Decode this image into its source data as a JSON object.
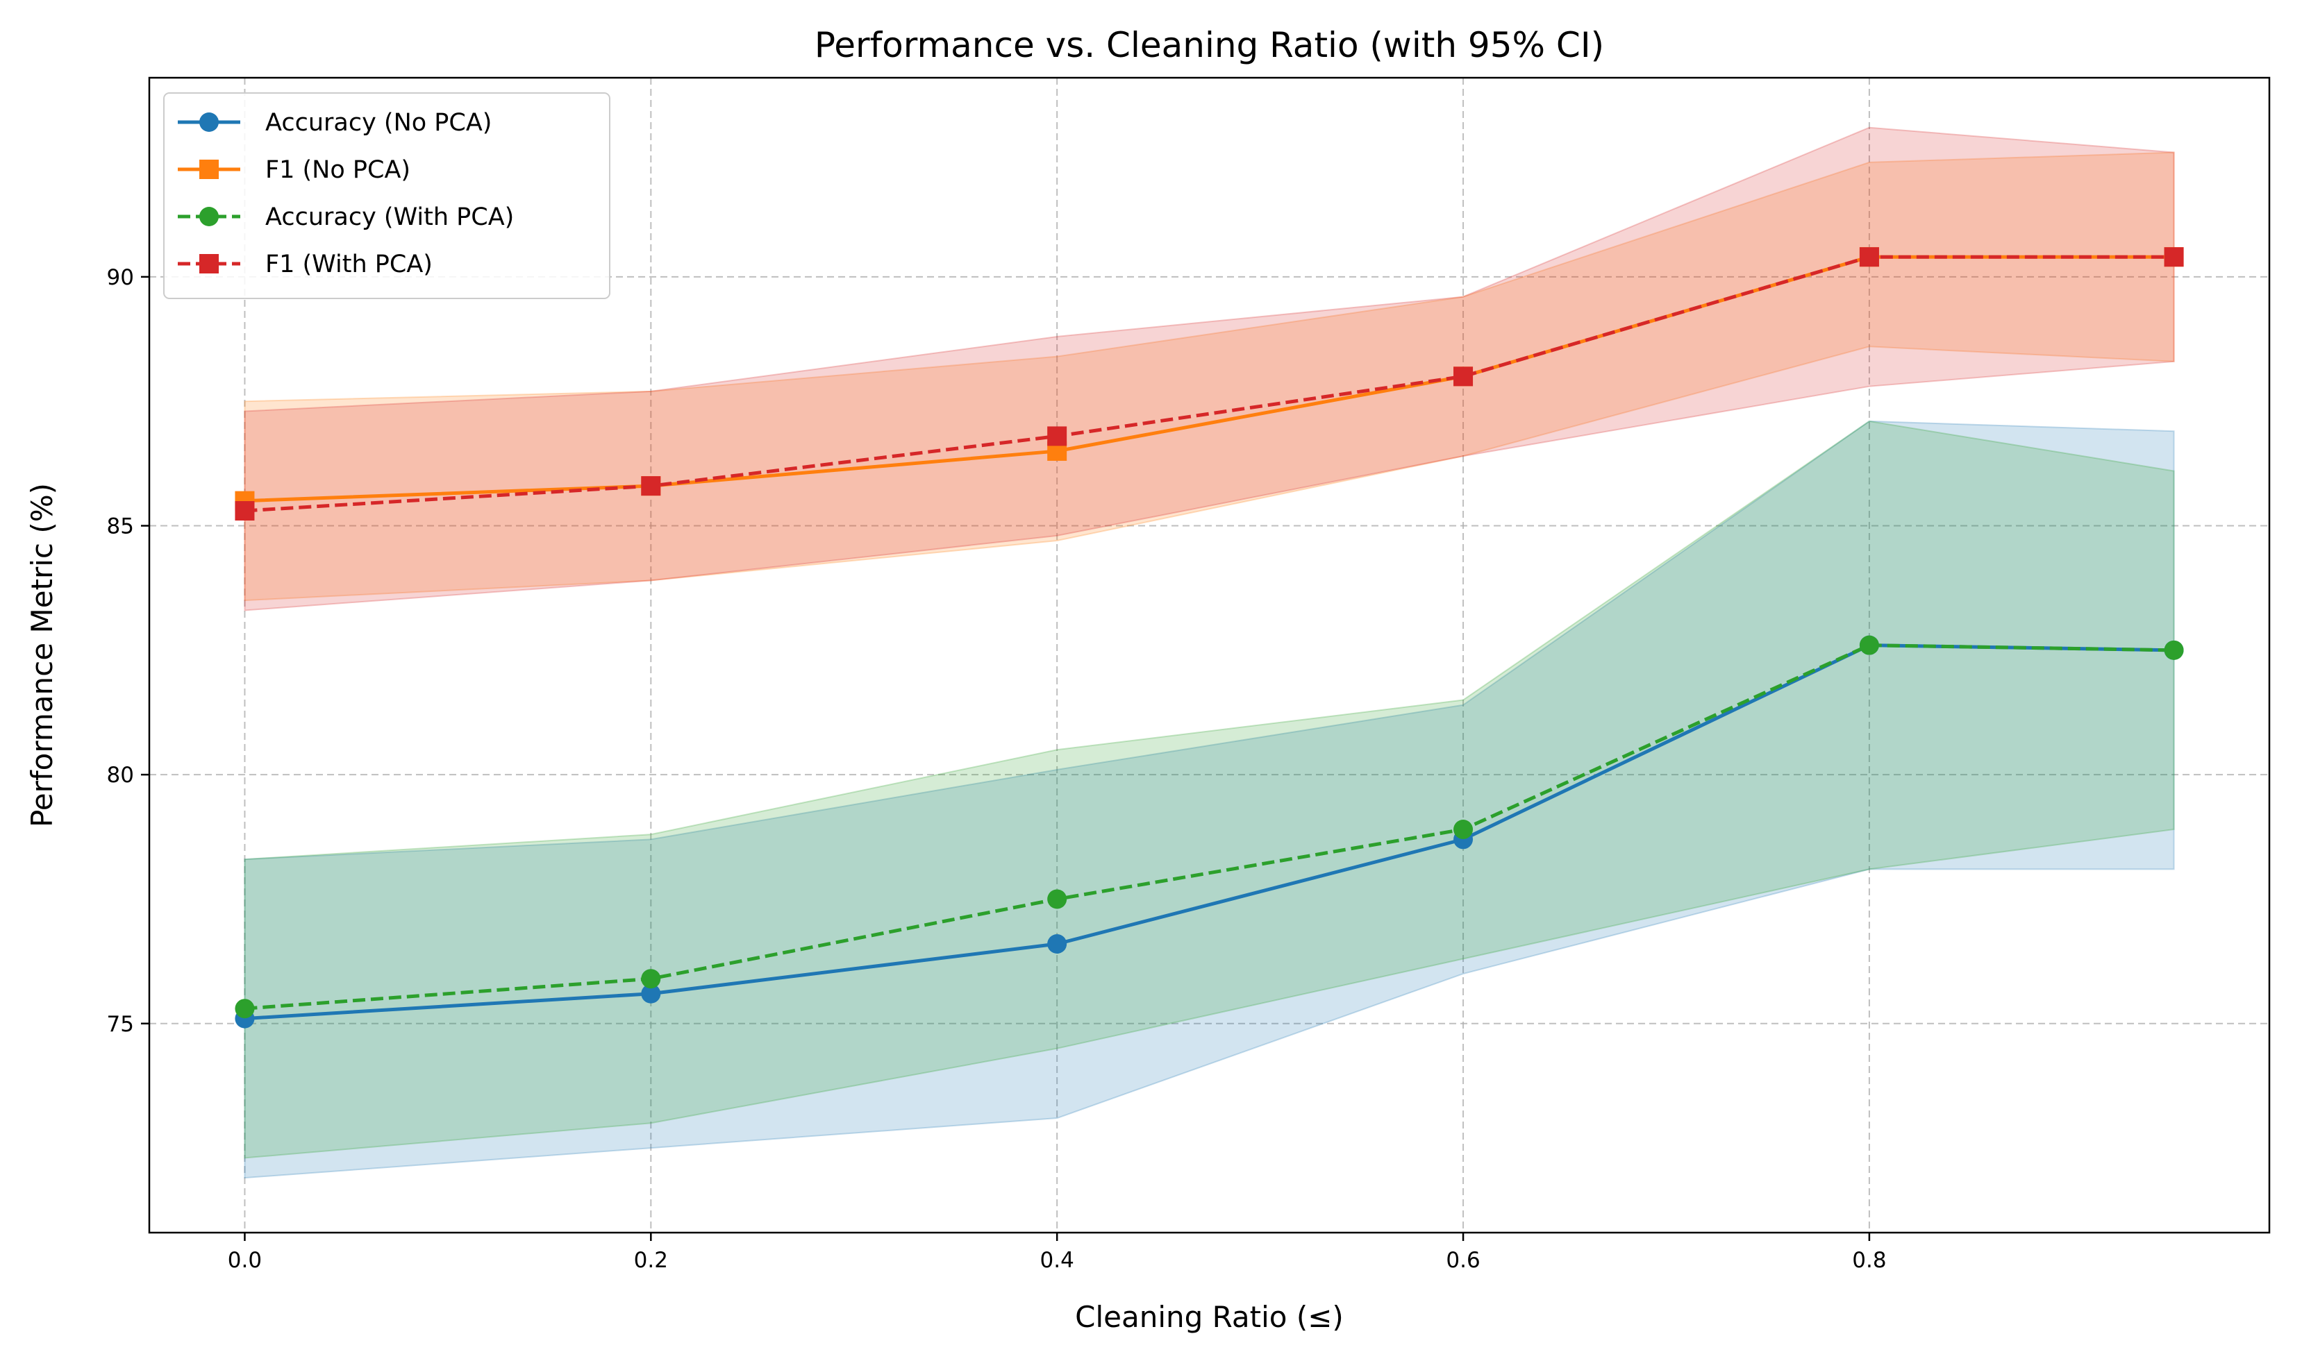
{
  "chart_data": {
    "type": "line",
    "title": "Performance vs. Cleaning Ratio (with 95% CI)",
    "xlabel": "Cleaning Ratio (≤)",
    "ylabel": "Performance Metric (%)",
    "xlim": [
      -0.047,
      0.997
    ],
    "ylim": [
      70.8,
      94.0
    ],
    "xticks": [
      0.0,
      0.2,
      0.4,
      0.6,
      0.8
    ],
    "xtick_labels": [
      "0.0",
      "0.2",
      "0.4",
      "0.6",
      "0.8"
    ],
    "yticks": [
      75,
      80,
      85,
      90
    ],
    "ytick_labels": [
      "75",
      "80",
      "85",
      "90"
    ],
    "grid": true,
    "legend_position": "upper-left",
    "x": [
      0.0,
      0.2,
      0.4,
      0.6,
      0.8,
      0.95
    ],
    "series": [
      {
        "name": "Accuracy (No PCA)",
        "color": "#1f77b4",
        "marker": "circle",
        "linestyle": "solid",
        "values": [
          75.1,
          75.6,
          76.6,
          78.7,
          82.6,
          82.5
        ],
        "ci_lower": [
          71.9,
          72.5,
          73.1,
          76.0,
          78.1,
          78.1
        ],
        "ci_upper": [
          78.3,
          78.7,
          80.1,
          81.4,
          87.1,
          86.9
        ]
      },
      {
        "name": "F1 (No PCA)",
        "color": "#ff7f0e",
        "marker": "square",
        "linestyle": "solid",
        "values": [
          85.5,
          85.8,
          86.5,
          88.0,
          90.4,
          90.4
        ],
        "ci_lower": [
          83.5,
          83.9,
          84.7,
          86.4,
          88.6,
          88.3
        ],
        "ci_upper": [
          87.5,
          87.7,
          88.4,
          89.6,
          92.3,
          92.5
        ]
      },
      {
        "name": "Accuracy (With PCA)",
        "color": "#2ca02c",
        "marker": "circle",
        "linestyle": "dashed",
        "values": [
          75.3,
          75.9,
          77.5,
          78.9,
          82.6,
          82.5
        ],
        "ci_lower": [
          72.3,
          73.0,
          74.5,
          76.3,
          78.1,
          78.9
        ],
        "ci_upper": [
          78.3,
          78.8,
          80.5,
          81.5,
          87.1,
          86.1
        ]
      },
      {
        "name": "F1 (With PCA)",
        "color": "#d62728",
        "marker": "square",
        "linestyle": "dashed",
        "values": [
          85.3,
          85.8,
          86.8,
          88.0,
          90.4,
          90.4
        ],
        "ci_lower": [
          83.3,
          83.9,
          84.8,
          86.4,
          87.8,
          88.3
        ],
        "ci_upper": [
          87.3,
          87.7,
          88.8,
          89.6,
          93.0,
          92.5
        ]
      }
    ]
  }
}
